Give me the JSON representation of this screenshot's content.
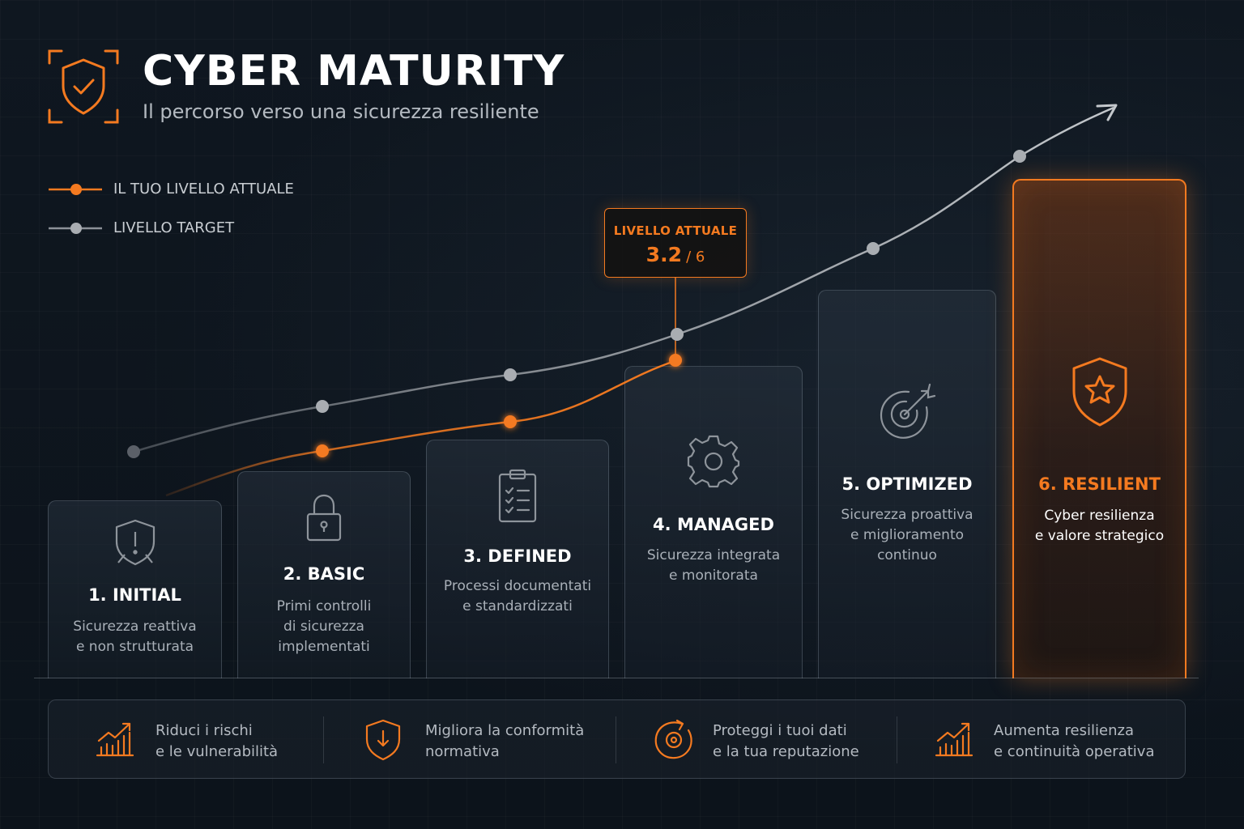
{
  "header": {
    "title": "CYBER MATURITY",
    "subtitle": "Il percorso verso una sicurezza resiliente",
    "logo_icon": "shield-check-icon"
  },
  "legend": {
    "current": "IL TUO LIVELLO ATTUALE",
    "target": "LIVELLO TARGET"
  },
  "callout": {
    "label": "LIVELLO ATTUALE",
    "value": "3.2",
    "max": "/ 6"
  },
  "colors": {
    "accent": "#f47a20",
    "target_line": "#a9adb2",
    "background": "#0d141c"
  },
  "stages": [
    {
      "title": "1. INITIAL",
      "line1": "Sicurezza reattiva",
      "line2": "e non strutturata",
      "line3": "",
      "icon": "shield-alert-icon"
    },
    {
      "title": "2. BASIC",
      "line1": "Primi controlli",
      "line2": "di sicurezza",
      "line3": "implementati",
      "icon": "padlock-icon"
    },
    {
      "title": "3. DEFINED",
      "line1": "Processi documentati",
      "line2": "e standardizzati",
      "line3": "",
      "icon": "clipboard-checklist-icon"
    },
    {
      "title": "4. MANAGED",
      "line1": "Sicurezza integrata",
      "line2": "e monitorata",
      "line3": "",
      "icon": "gear-icon"
    },
    {
      "title": "5. OPTIMIZED",
      "line1": "Sicurezza proattiva",
      "line2": "e miglioramento",
      "line3": "continuo",
      "icon": "target-icon"
    },
    {
      "title": "6. RESILIENT",
      "line1": "Cyber resilienza",
      "line2": "e valore strategico",
      "line3": "",
      "icon": "shield-star-icon"
    }
  ],
  "benefits": [
    {
      "line1": "Riduci i rischi",
      "line2": "e le vulnerabilità",
      "icon": "chart-growth-icon"
    },
    {
      "line1": "Migliora la conformità",
      "line2": "normativa",
      "icon": "shield-arrow-icon"
    },
    {
      "line1": "Proteggi i tuoi dati",
      "line2": "e la tua reputazione",
      "icon": "target-refresh-icon"
    },
    {
      "line1": "Aumenta resilienza",
      "line2": "e continuità operativa",
      "icon": "chart-growth-icon"
    }
  ]
}
